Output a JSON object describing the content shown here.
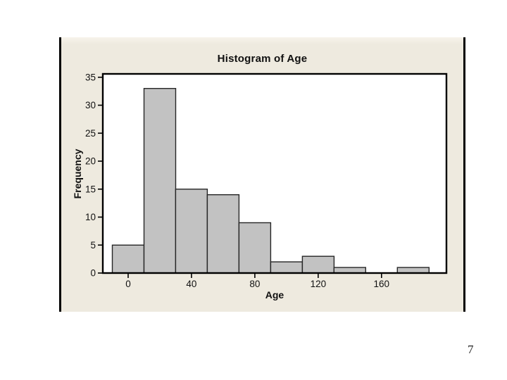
{
  "page": {
    "number": "7",
    "background": "#ffffff"
  },
  "frame": {
    "fill": "#eeeadf",
    "rail_color": "#000000"
  },
  "chart_data": {
    "type": "bar",
    "subtype": "histogram",
    "title": "Histogram of Age",
    "xlabel": "Age",
    "ylabel": "Frequency",
    "bin_edges": [
      -10,
      10,
      30,
      50,
      70,
      90,
      110,
      130,
      150,
      170,
      190
    ],
    "counts": [
      5,
      33,
      15,
      14,
      9,
      2,
      3,
      1,
      0,
      1
    ],
    "x_ticks": [
      0,
      40,
      80,
      120,
      160
    ],
    "y_ticks": [
      0,
      5,
      10,
      15,
      20,
      25,
      30,
      35
    ],
    "xlim": [
      -16,
      201
    ],
    "ylim": [
      0,
      35.6
    ],
    "grid": false,
    "legend": null,
    "colors": {
      "bar_fill": "#c2c2c2",
      "bar_stroke": "#262626",
      "axis": "#000000",
      "plot_background": "#ffffff",
      "text": "#111111"
    }
  }
}
